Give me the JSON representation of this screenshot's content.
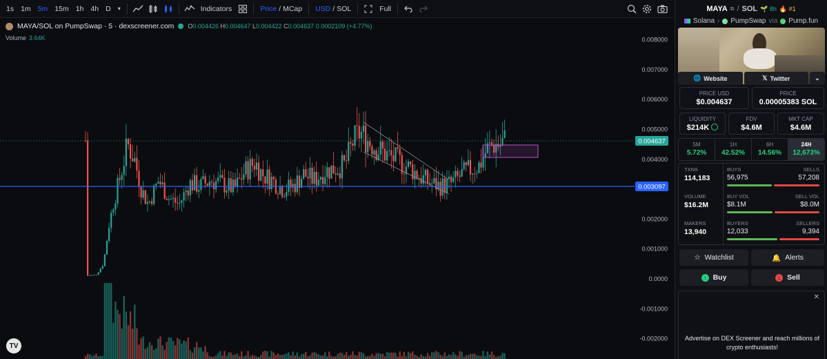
{
  "toolbar": {
    "intervals": [
      "1s",
      "1m",
      "5m",
      "15m",
      "1h",
      "4h",
      "D"
    ],
    "active_interval": "5m",
    "indicators_label": "Indicators",
    "price_label": "Price",
    "mcap_label": "MCap",
    "usd_label": "USD",
    "sol_label": "SOL",
    "full_label": "Full",
    "slash": "/"
  },
  "legend": {
    "title": "MAYA/SOL on PumpSwap · 5 · dexscreener.com",
    "o_label": "O",
    "o_value": "0.004426",
    "h_label": "H",
    "h_value": "0.004647",
    "l_label": "L",
    "l_value": "0.004422",
    "c_label": "C",
    "c_value": "0.004637",
    "change": "0.0002109 (+4.77%)",
    "volume_label": "Volume",
    "volume_value": "3.64K"
  },
  "colors": {
    "up": "#26a69a",
    "down": "#ef5350",
    "accent": "#2962ff",
    "current_price_tag": "#26a69a",
    "hline_tag": "#2962ff"
  },
  "chart_data": {
    "type": "candlestick",
    "price_axis": [
      "0.008000",
      "0.007000",
      "0.006000",
      "0.005000",
      "0.004000",
      "0.002000",
      "0.001000",
      "0.0000",
      "-0.001000",
      "-0.002000"
    ],
    "current_price_tag": "0.004637",
    "hline_tag": "0.003097"
  },
  "panel": {
    "base": "MAYA",
    "quote": "SOL",
    "slash": "/",
    "age": "8h",
    "rank": "#1",
    "chain": "Solana",
    "dex": "PumpSwap",
    "via": "via",
    "launchpad": "Pump.fun",
    "website": "Website",
    "twitter": "Twitter",
    "price_usd_label": "PRICE USD",
    "price_usd": "$0.004637",
    "price_label": "PRICE",
    "price_sol": "0.00005383 SOL",
    "liquidity_label": "LIQUIDITY",
    "liquidity": "$214K",
    "fdv_label": "FDV",
    "fdv": "$4.6M",
    "mktcap_label": "MKT CAP",
    "mktcap": "$4.6M",
    "timeframes": [
      {
        "label": "5M",
        "value": "5.72%"
      },
      {
        "label": "1H",
        "value": "42.52%"
      },
      {
        "label": "6H",
        "value": "14.56%"
      },
      {
        "label": "24H",
        "value": "12,673%"
      }
    ],
    "txns_label": "TXNS",
    "txns": "114,183",
    "buys_label": "BUYS",
    "buys": "56,975",
    "sells_label": "SELLS",
    "sells": "57,208",
    "volume_label": "VOLUME",
    "volume": "$16.2M",
    "buyvol_label": "BUY VOL",
    "buyvol": "$8.1M",
    "sellvol_label": "SELL VOL",
    "sellvol": "$8.0M",
    "makers_label": "MAKERS",
    "makers": "13,940",
    "buyers_label": "BUYERS",
    "buyers": "12,033",
    "sellers_label": "SELLERS",
    "sellers": "9,394",
    "watchlist": "Watchlist",
    "alerts": "Alerts",
    "buy": "Buy",
    "sell": "Sell",
    "ad_text": "Advertise on DEX Screener and reach millions of crypto enthusiasts!",
    "ad_close": "✕"
  }
}
